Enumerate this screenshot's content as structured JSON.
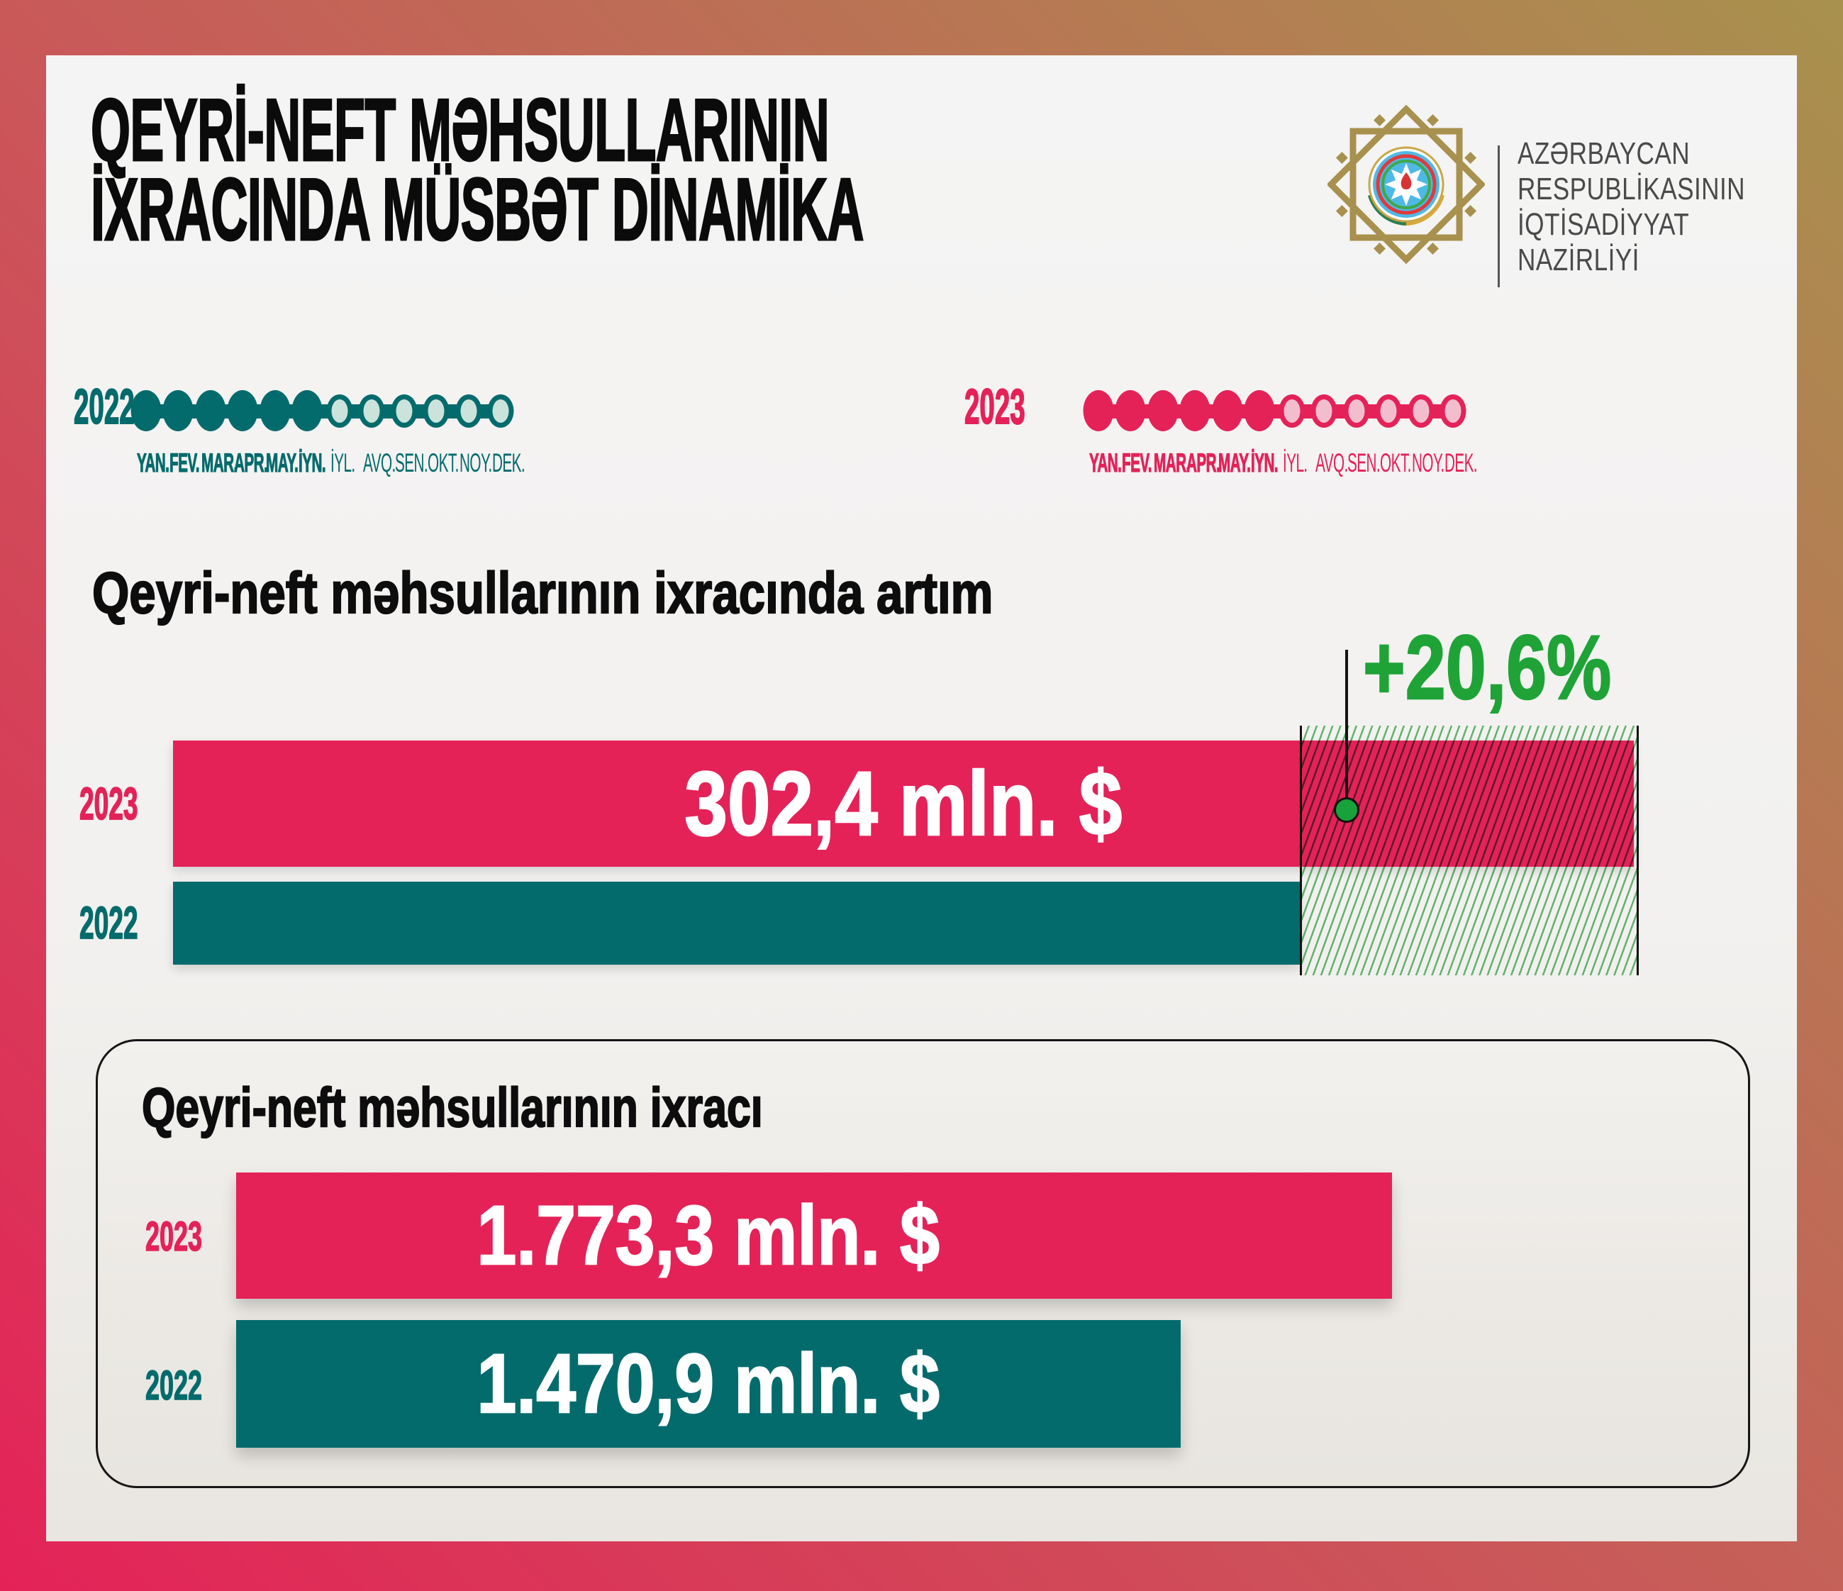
{
  "header": {
    "title_line1": "QEYRİ-NEFT MƏHSULLARININ",
    "title_line2": "İXRACINDA MÜSBƏT DİNAMİKA"
  },
  "ministry": {
    "line1": "AZƏRBAYCAN",
    "line2": "RESPUBLİKASININ",
    "line3": "İQTİSADİYYAT",
    "line4": "NAZİRLİYİ",
    "emblem_icon": "azerbaijan-coat-of-arms-in-gold-ornamental-star"
  },
  "months": [
    "YAN.",
    "FEV.",
    "MAR.",
    "APR.",
    "MAY.",
    "İYN.",
    "İYL.",
    "AVQ.",
    "SEN.",
    "OKT.",
    "NOY.",
    "DEK."
  ],
  "timelines": [
    {
      "year": "2022",
      "active_months": 6,
      "color": "#046b6c",
      "inactive_fill": "#cbe3da"
    },
    {
      "year": "2023",
      "active_months": 6,
      "color": "#e42258",
      "inactive_fill": "#f2becd"
    }
  ],
  "growth_chart": {
    "heading": "Qeyri-neft məhsullarının ixracında artım",
    "growth_badge": "+20,6%",
    "growth_color": "#1fa337",
    "bars": [
      {
        "year": "2023",
        "label": "302,4 mln. $",
        "color": "#e42258"
      },
      {
        "year": "2022",
        "label": "",
        "color": "#046b6c"
      }
    ]
  },
  "export_box": {
    "title": "Qeyri-neft məhsullarının ixracı",
    "bars": [
      {
        "year": "2023",
        "label": "1.773,3 mln. $",
        "color": "#e42258"
      },
      {
        "year": "2022",
        "label": "1.470,9 mln. $",
        "color": "#046b6c"
      }
    ]
  },
  "colors": {
    "crimson": "#e42258",
    "teal": "#046b6c",
    "accent_green": "#1fa337",
    "hatch_green": "#68bd74",
    "gold": "#a8914e",
    "frame_gradient": [
      "#e42258",
      "#c85b59",
      "#a8914e"
    ],
    "panel_bg": "#f5f4f4"
  },
  "chart_data": [
    {
      "type": "bar",
      "title": "Qeyri-neft məhsullarının ixracında artım",
      "categories": [
        "2023",
        "2022"
      ],
      "values": [
        302.4,
        null
      ],
      "value_labels": [
        "302,4 mln. $",
        ""
      ],
      "unit": "mln. $",
      "annotations": [
        "+20,6%"
      ],
      "orientation": "horizontal",
      "series_colors": [
        "#e42258",
        "#046b6c"
      ]
    },
    {
      "type": "bar",
      "title": "Qeyri-neft məhsullarının ixracı",
      "categories": [
        "2023",
        "2022"
      ],
      "values": [
        1773.3,
        1470.9
      ],
      "value_labels": [
        "1.773,3 mln. $",
        "1.470,9 mln. $"
      ],
      "unit": "mln. $",
      "orientation": "horizontal",
      "series_colors": [
        "#e42258",
        "#046b6c"
      ]
    },
    {
      "type": "table",
      "title": "Aylar üzrə dövr (hər iki il üçün YAN–İYN aktiv)",
      "categories": [
        "YAN.",
        "FEV.",
        "MAR.",
        "APR.",
        "MAY.",
        "İYN.",
        "İYL.",
        "AVQ.",
        "SEN.",
        "OKT.",
        "NOY.",
        "DEK."
      ],
      "series": [
        {
          "name": "2022",
          "values": [
            1,
            1,
            1,
            1,
            1,
            1,
            0,
            0,
            0,
            0,
            0,
            0
          ]
        },
        {
          "name": "2023",
          "values": [
            1,
            1,
            1,
            1,
            1,
            1,
            0,
            0,
            0,
            0,
            0,
            0
          ]
        }
      ]
    }
  ]
}
